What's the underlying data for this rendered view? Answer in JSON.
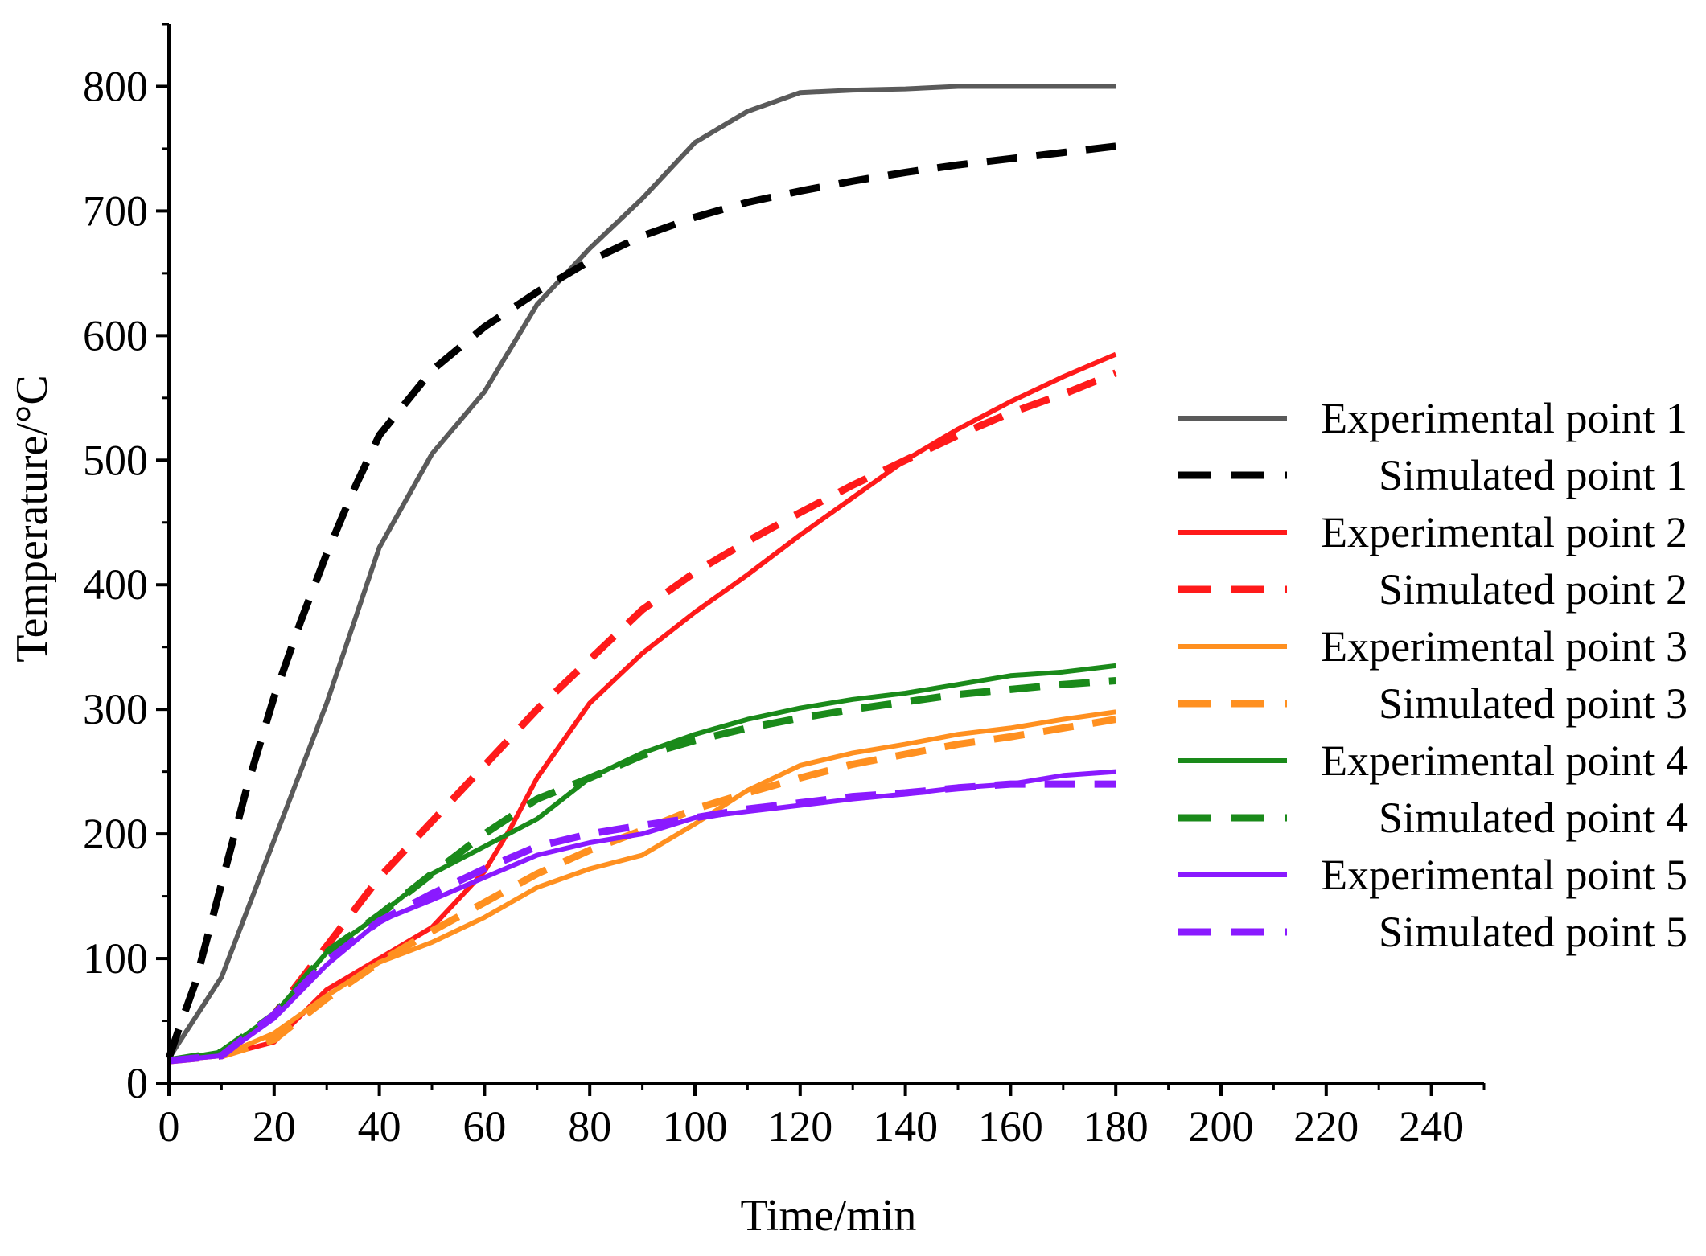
{
  "chart_data": {
    "type": "line",
    "title": "",
    "xlabel": "Time/min",
    "ylabel": "Temperature/°C",
    "xlim": [
      0,
      250
    ],
    "ylim": [
      0,
      850
    ],
    "xticks": [
      0,
      20,
      40,
      60,
      80,
      100,
      120,
      140,
      160,
      180,
      200,
      220,
      240
    ],
    "yticks": [
      0,
      100,
      200,
      300,
      400,
      500,
      600,
      700,
      800
    ],
    "grid": false,
    "legend_position": "right",
    "series": [
      {
        "name": "Experimental point 1",
        "color": "#5a5a5a",
        "style": "solid",
        "x": [
          0,
          10,
          20,
          30,
          40,
          50,
          60,
          70,
          80,
          90,
          100,
          110,
          120,
          130,
          140,
          150,
          160,
          170,
          180
        ],
        "y": [
          20,
          85,
          195,
          305,
          430,
          505,
          555,
          625,
          670,
          710,
          755,
          780,
          795,
          797,
          798,
          800,
          800,
          800,
          800
        ]
      },
      {
        "name": "Simulated point 1",
        "color": "#000000",
        "style": "dashed",
        "x": [
          0,
          2,
          5,
          10,
          15,
          20,
          25,
          30,
          35,
          40,
          50,
          60,
          70,
          80,
          90,
          100,
          110,
          120,
          130,
          140,
          150,
          160,
          170,
          180
        ],
        "y": [
          20,
          45,
          80,
          160,
          240,
          310,
          370,
          425,
          475,
          520,
          572,
          607,
          635,
          660,
          680,
          695,
          707,
          716,
          724,
          731,
          737,
          742,
          747,
          752
        ]
      },
      {
        "name": "Experimental point 2",
        "color": "#ff1a1a",
        "style": "solid",
        "x": [
          0,
          10,
          20,
          30,
          40,
          50,
          60,
          65,
          70,
          80,
          90,
          100,
          110,
          120,
          130,
          140,
          150,
          160,
          170,
          180
        ],
        "y": [
          18,
          22,
          33,
          75,
          100,
          125,
          170,
          205,
          245,
          305,
          345,
          378,
          408,
          440,
          470,
          500,
          525,
          547,
          567,
          585
        ]
      },
      {
        "name": "Simulated point 2",
        "color": "#ff1a1a",
        "style": "dashed",
        "x": [
          0,
          10,
          20,
          30,
          40,
          50,
          60,
          70,
          80,
          90,
          100,
          110,
          120,
          130,
          140,
          150,
          160,
          170,
          180
        ],
        "y": [
          18,
          22,
          55,
          110,
          165,
          210,
          255,
          300,
          340,
          380,
          410,
          435,
          458,
          480,
          500,
          520,
          538,
          553,
          570
        ]
      },
      {
        "name": "Experimental point 3",
        "color": "#ff9020",
        "style": "solid",
        "x": [
          0,
          10,
          20,
          30,
          40,
          50,
          60,
          70,
          80,
          90,
          100,
          110,
          120,
          130,
          140,
          150,
          160,
          170,
          180
        ],
        "y": [
          18,
          22,
          40,
          70,
          97,
          113,
          133,
          157,
          172,
          183,
          208,
          235,
          255,
          265,
          272,
          280,
          285,
          292,
          298
        ]
      },
      {
        "name": "Simulated point 3",
        "color": "#ff9020",
        "style": "dashed",
        "x": [
          0,
          10,
          20,
          30,
          40,
          50,
          60,
          70,
          80,
          90,
          100,
          110,
          120,
          130,
          140,
          150,
          160,
          170,
          180
        ],
        "y": [
          18,
          22,
          35,
          68,
          97,
          122,
          145,
          168,
          187,
          203,
          220,
          233,
          245,
          256,
          264,
          272,
          278,
          285,
          292
        ]
      },
      {
        "name": "Experimental point 4",
        "color": "#1a8a1a",
        "style": "solid",
        "x": [
          0,
          10,
          20,
          30,
          40,
          50,
          60,
          70,
          80,
          90,
          100,
          110,
          120,
          130,
          140,
          150,
          160,
          170,
          180
        ],
        "y": [
          18,
          25,
          55,
          105,
          135,
          168,
          190,
          212,
          245,
          265,
          280,
          292,
          301,
          308,
          313,
          320,
          327,
          330,
          335
        ]
      },
      {
        "name": "Simulated point 4",
        "color": "#1a8a1a",
        "style": "dashed",
        "x": [
          0,
          10,
          20,
          30,
          40,
          50,
          60,
          70,
          80,
          90,
          100,
          110,
          120,
          130,
          140,
          150,
          160,
          170,
          180
        ],
        "y": [
          18,
          25,
          55,
          105,
          135,
          168,
          200,
          228,
          245,
          263,
          275,
          285,
          293,
          300,
          306,
          312,
          316,
          320,
          323
        ]
      },
      {
        "name": "Experimental point 5",
        "color": "#8a1aff",
        "style": "solid",
        "x": [
          0,
          10,
          20,
          30,
          40,
          50,
          60,
          70,
          80,
          90,
          100,
          110,
          120,
          130,
          140,
          150,
          160,
          170,
          180
        ],
        "y": [
          18,
          22,
          52,
          95,
          130,
          147,
          165,
          183,
          193,
          200,
          213,
          218,
          223,
          228,
          232,
          237,
          240,
          247,
          250
        ]
      },
      {
        "name": "Simulated point 5",
        "color": "#8a1aff",
        "style": "dashed",
        "x": [
          0,
          10,
          20,
          30,
          40,
          50,
          60,
          70,
          80,
          90,
          100,
          110,
          120,
          130,
          140,
          150,
          160,
          170,
          180
        ],
        "y": [
          18,
          22,
          55,
          98,
          130,
          152,
          172,
          190,
          200,
          207,
          213,
          220,
          225,
          230,
          233,
          237,
          240,
          240,
          240
        ]
      }
    ]
  }
}
